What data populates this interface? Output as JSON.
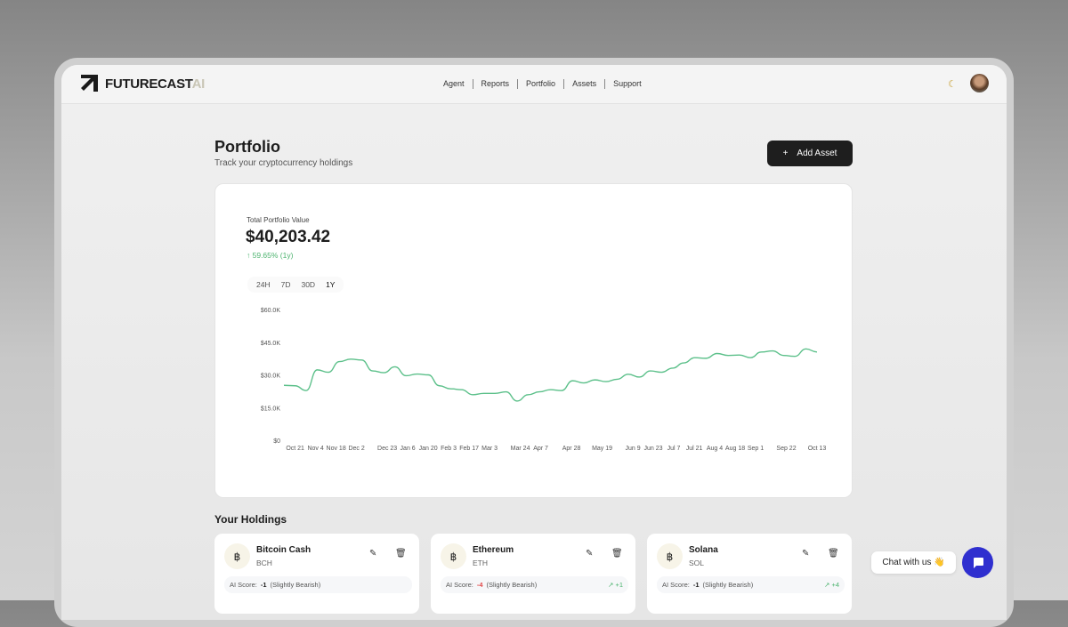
{
  "header": {
    "logo_main": "FUTURECAST",
    "logo_accent": "AI",
    "nav": [
      "Agent",
      "Reports",
      "Portfolio",
      "Assets",
      "Support"
    ],
    "theme_icon": "moon-icon"
  },
  "page": {
    "title": "Portfolio",
    "subtitle": "Track your cryptocurrency holdings",
    "add_button": "Add Asset"
  },
  "summary": {
    "label": "Total Portfolio Value",
    "value": "$40,203.42",
    "change": "↑ 59.65% (1y)",
    "ranges": [
      "24H",
      "7D",
      "30D",
      "1Y"
    ],
    "active_range": "1Y"
  },
  "chart_data": {
    "type": "line",
    "color": "#5cc08a",
    "ylim": [
      0,
      60000
    ],
    "y_ticks": [
      "$0",
      "$15.0K",
      "$30.0K",
      "$45.0K",
      "$60.0K"
    ],
    "x_ticks": [
      "Oct 21",
      "Nov 4",
      "Nov 18",
      "Dec 2",
      "Dec 23",
      "Jan 6",
      "Jan 20",
      "Feb 3",
      "Feb 17",
      "Mar 3",
      "Mar 24",
      "Apr 7",
      "Apr 28",
      "May 19",
      "Jun 9",
      "Jun 23",
      "Jul 7",
      "Jul 21",
      "Aug 4",
      "Aug 18",
      "Sep 1",
      "Sep 22",
      "Oct 13"
    ],
    "values": [
      25200,
      25000,
      22800,
      32300,
      31200,
      36100,
      37200,
      36800,
      31800,
      31000,
      33700,
      29600,
      30400,
      30000,
      25000,
      23600,
      23200,
      20900,
      21500,
      21500,
      22200,
      18000,
      20900,
      22200,
      23200,
      22800,
      27300,
      26300,
      27700,
      26900,
      28000,
      30300,
      29000,
      31800,
      31200,
      33100,
      35500,
      37900,
      37600,
      39800,
      38900,
      39100,
      37900,
      40500,
      41000,
      38900,
      38500,
      41900,
      40500
    ]
  },
  "holdings": {
    "title": "Your Holdings",
    "items": [
      {
        "name": "Bitcoin Cash",
        "symbol": "BCH",
        "glyph": "฿",
        "score_label": "AI Score:",
        "score": "-1",
        "sentiment": "(Slightly Bearish)",
        "trend": ""
      },
      {
        "name": "Ethereum",
        "symbol": "ETH",
        "glyph": "฿",
        "score_label": "AI Score:",
        "score": "-4",
        "sentiment": "(Slightly Bearish)",
        "trend": "↗ +1"
      },
      {
        "name": "Solana",
        "symbol": "SOL",
        "glyph": "฿",
        "score_label": "AI Score:",
        "score": "-1",
        "sentiment": "(Slightly Bearish)",
        "trend": "↗ +4"
      }
    ]
  },
  "chat": {
    "label": "Chat with us 👋"
  }
}
